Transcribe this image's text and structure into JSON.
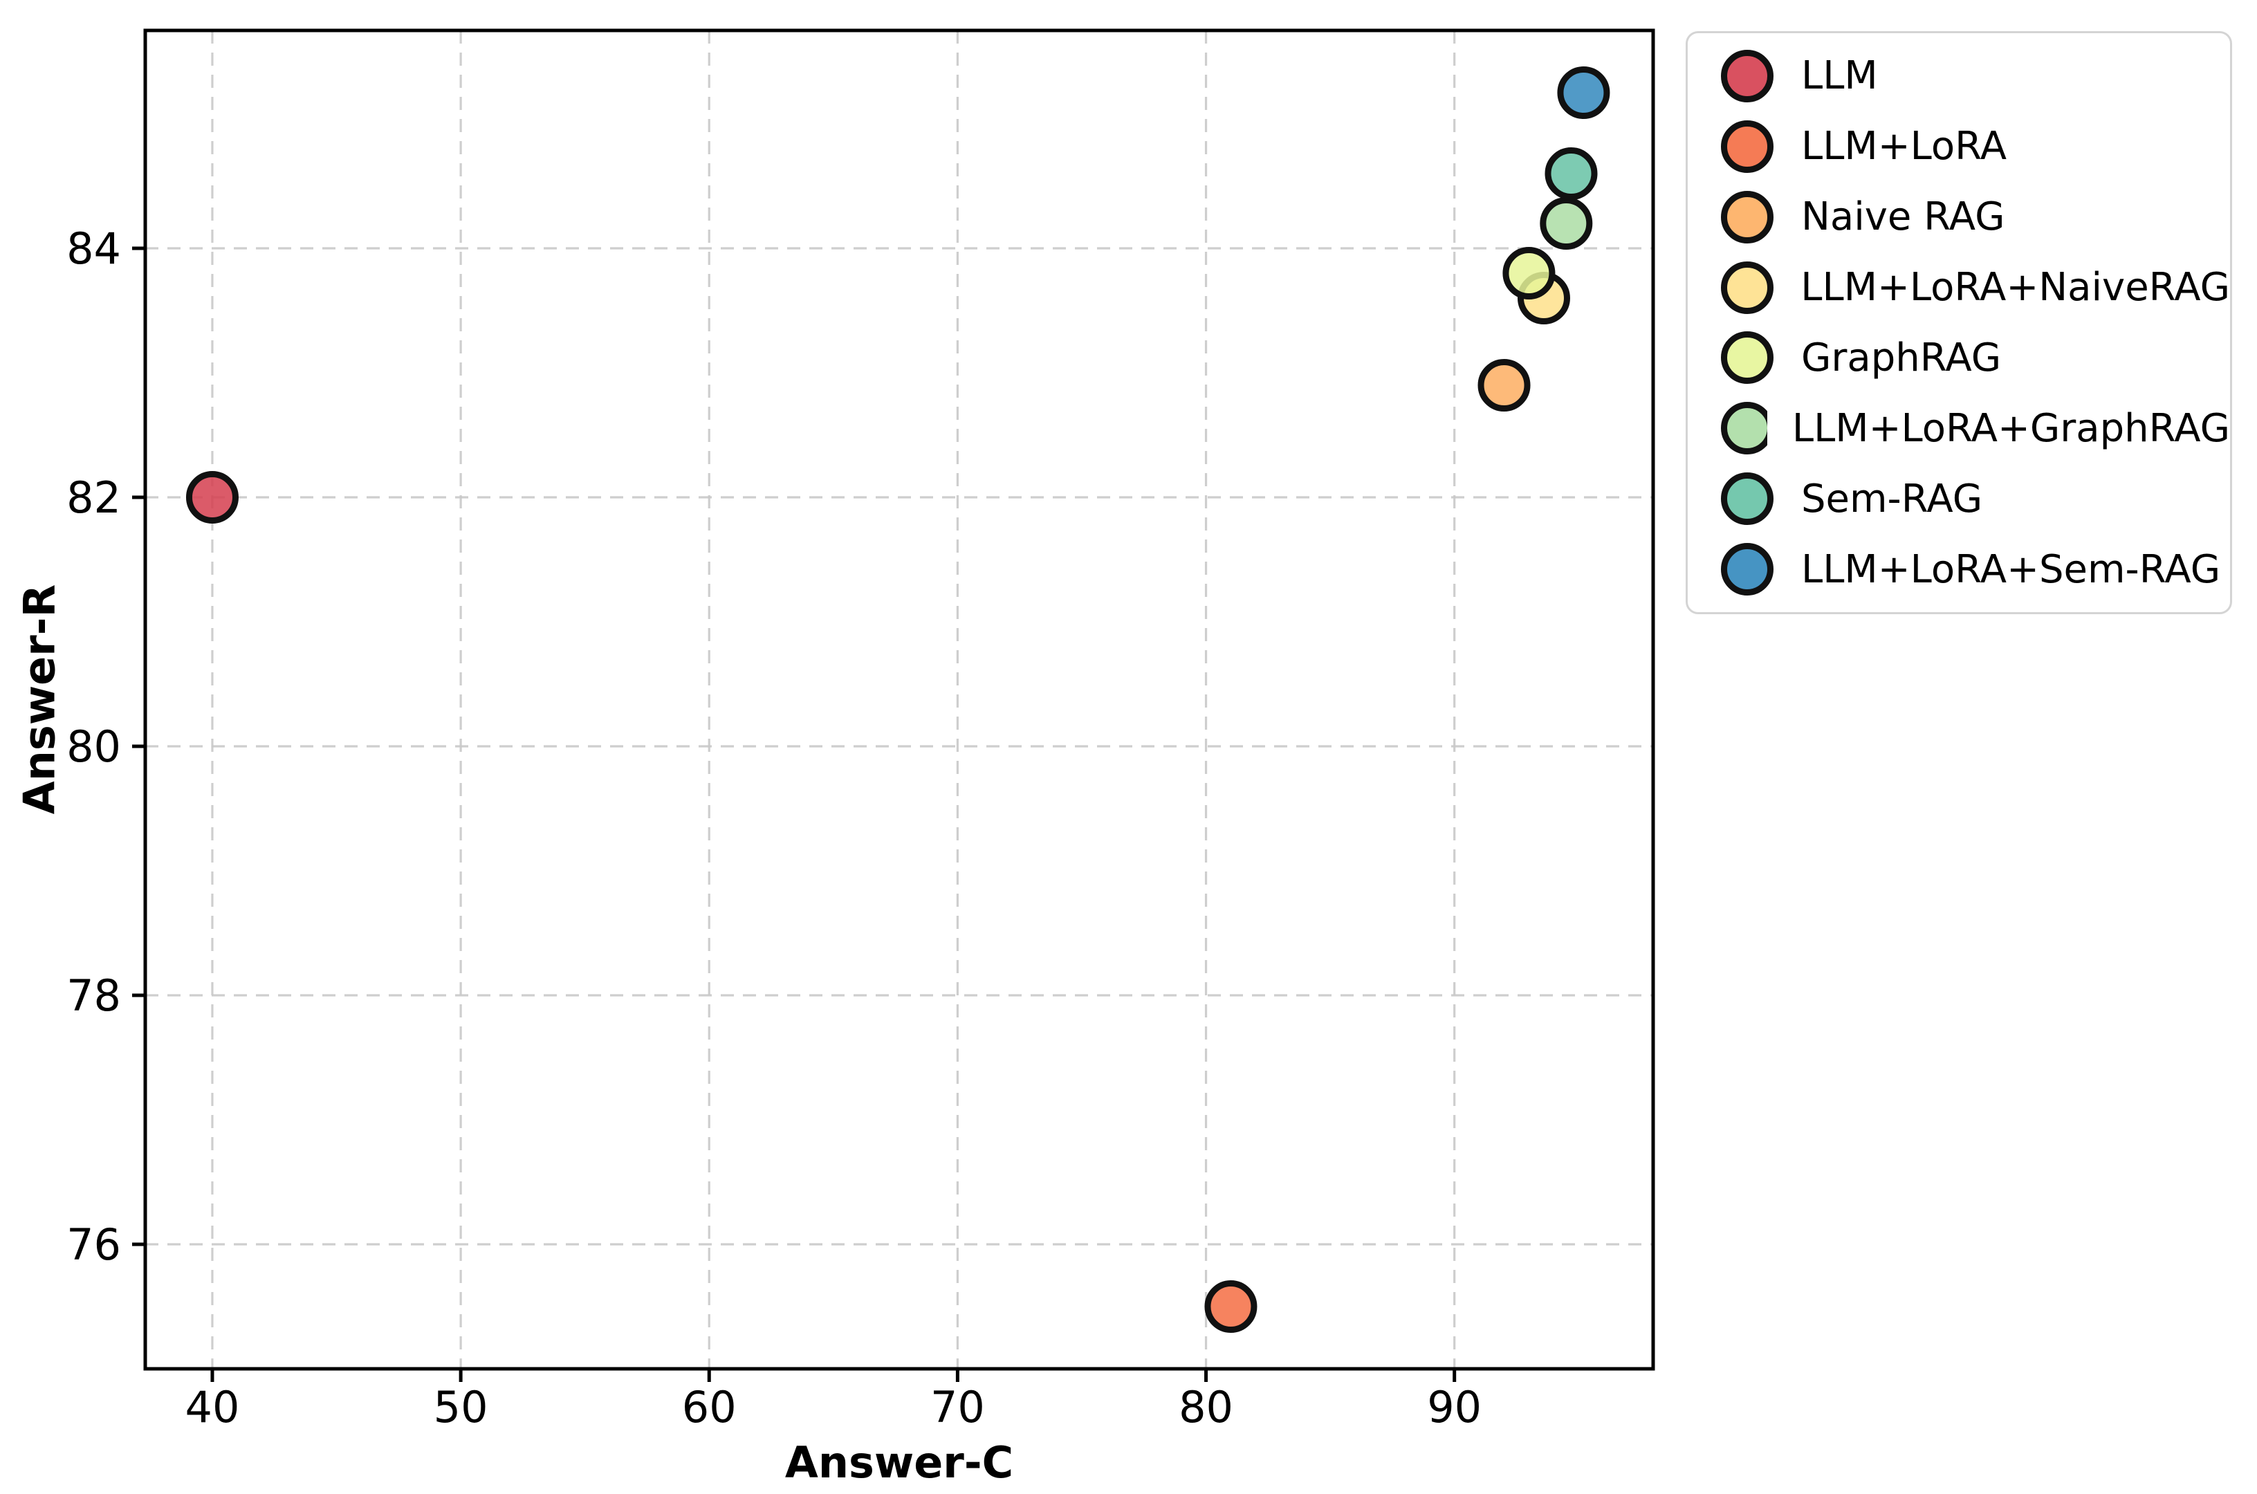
{
  "chart_data": {
    "type": "scatter",
    "title": "",
    "xlabel": "Answer-C",
    "ylabel": "Answer-R",
    "xlim": [
      37.3,
      98.0
    ],
    "ylim": [
      75.0,
      85.75
    ],
    "xticks": [
      40,
      50,
      60,
      70,
      80,
      90
    ],
    "yticks": [
      76,
      78,
      80,
      82,
      84
    ],
    "grid": true,
    "grid_style": "dashed",
    "legend_position": "outside-upper-right",
    "marker_edge_color": "#111111",
    "grid_color": "#c9c9c9",
    "series": [
      {
        "name": "LLM",
        "color": "#d53e4f",
        "x": 40.0,
        "y": 82.0
      },
      {
        "name": "LLM+LoRA",
        "color": "#f46d43",
        "x": 81.0,
        "y": 75.5
      },
      {
        "name": "Naive RAG",
        "color": "#fdae61",
        "x": 92.0,
        "y": 82.9
      },
      {
        "name": "LLM+LoRA+NaiveRAG",
        "color": "#fee08b",
        "x": 93.6,
        "y": 83.6
      },
      {
        "name": "GraphRAG",
        "color": "#e6f598",
        "x": 93.0,
        "y": 83.8
      },
      {
        "name": "LLM+LoRA+GraphRAG",
        "color": "#abdda4",
        "x": 94.5,
        "y": 84.2
      },
      {
        "name": "Sem-RAG",
        "color": "#66c2a5",
        "x": 94.7,
        "y": 84.6
      },
      {
        "name": "LLM+LoRA+Sem-RAG",
        "color": "#3288bd",
        "x": 95.2,
        "y": 85.25
      }
    ]
  }
}
